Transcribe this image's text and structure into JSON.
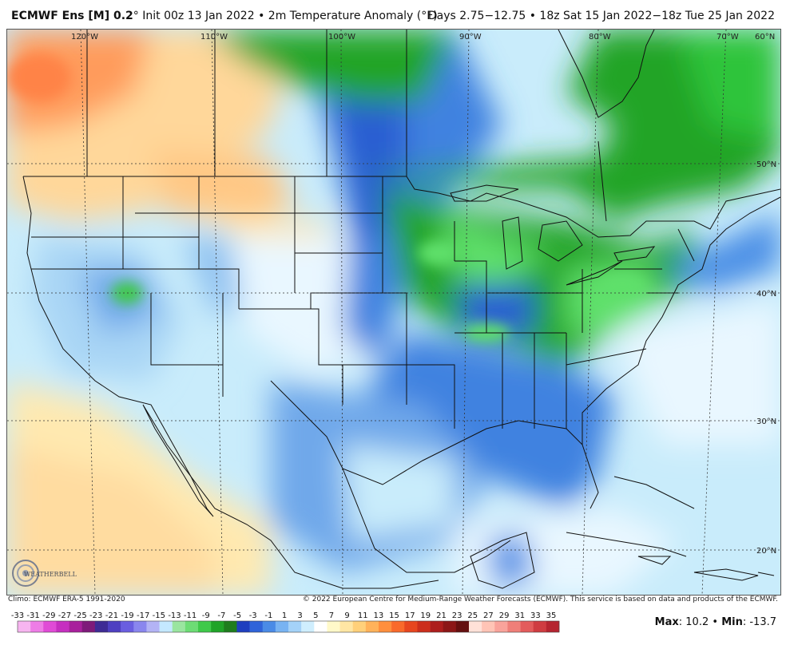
{
  "header": {
    "model": "ECMWF Ens [M] 0.2",
    "degree": "°",
    "init": "Init 00z 13 Jan 2022",
    "separator": "•",
    "product": "2m Temperature Anomaly (°F)",
    "valid": "Days 2.75−12.75 • 18z Sat 15 Jan 2022−18z Tue 25 Jan 2022"
  },
  "footer": {
    "climo": "Climo: ECMWF ERA-5 1991-2020",
    "copyright": "© 2022 European Centre for Medium-Range Weather Forecasts (ECMWF). This service is based on data and products of the ECMWF."
  },
  "stats": {
    "max_label": "Max",
    "max_value": "10.2",
    "sep": "•",
    "min_label": "Min",
    "min_value": "-13.7"
  },
  "logo": {
    "text": "WEATHERBELL"
  },
  "grid": {
    "longitudes": [
      {
        "label": "120°W"
      },
      {
        "label": "110°W"
      },
      {
        "label": "100°W"
      },
      {
        "label": "90°W"
      },
      {
        "label": "80°W"
      },
      {
        "label": "70°W"
      },
      {
        "label": "60°N"
      }
    ],
    "latitudes": [
      {
        "label": "50°N"
      },
      {
        "label": "40°N"
      },
      {
        "label": "30°N"
      },
      {
        "label": "20°N"
      }
    ]
  },
  "legend": {
    "ticks": [
      "-33",
      "-31",
      "-29",
      "-27",
      "-25",
      "-23",
      "-21",
      "-19",
      "-17",
      "-15",
      "-13",
      "-11",
      "-9",
      "-7",
      "-5",
      "-3",
      "-1",
      "1",
      "3",
      "5",
      "7",
      "9",
      "11",
      "13",
      "15",
      "17",
      "19",
      "21",
      "23",
      "25",
      "27",
      "29",
      "31",
      "33",
      "35"
    ],
    "colors": [
      "#f7b5f0",
      "#ee7de6",
      "#e04bd6",
      "#c62fc0",
      "#a8209c",
      "#7e1a7a",
      "#3e2b95",
      "#4e3fc1",
      "#6a5ee0",
      "#8a86ee",
      "#b3b3f5",
      "#c4e8ff",
      "#9ae5a0",
      "#6ddc75",
      "#3fc94a",
      "#20a428",
      "#1f7d1e",
      "#1f3fbf",
      "#2f63d9",
      "#4a8be6",
      "#78b3f2",
      "#a4d2f8",
      "#cfeefe",
      "#ffffff",
      "#fff9c9",
      "#ffe6a4",
      "#ffd07a",
      "#ffb25a",
      "#ff8f3d",
      "#f96a2b",
      "#e7461f",
      "#cc2e1c",
      "#ad1e1d",
      "#8c1717",
      "#651010",
      "#ffe1d8",
      "#ffc4b6",
      "#f9a39b",
      "#ef7f79",
      "#e35c5c",
      "#cf3c41",
      "#b52530"
    ]
  }
}
